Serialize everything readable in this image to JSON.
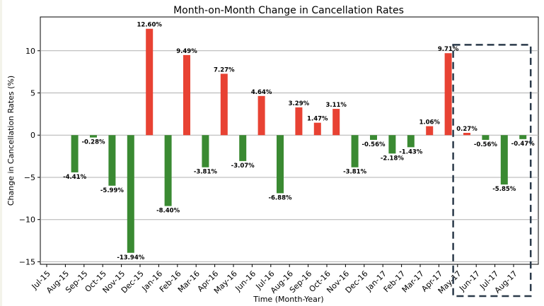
{
  "colors": {
    "increase": "#e84233",
    "decrease": "#3a8a32",
    "highlight_box": "#2b3a4a"
  },
  "chart_data": {
    "type": "bar",
    "title": "Month-on-Month Change in Cancellation Rates",
    "xlabel": "Time (Month-Year)",
    "ylabel": "Change in Cancellation Rates (%)",
    "ylim": [
      -15.3,
      14
    ],
    "yticks": [
      -15,
      -10,
      -5,
      0,
      5,
      10
    ],
    "grid": "horizontal",
    "categories": [
      "Jul-15",
      "Aug-15",
      "Sep-15",
      "Oct-15",
      "Nov-15",
      "Dec-15",
      "Jan-16",
      "Feb-16",
      "Mar-16",
      "Apr-16",
      "May-16",
      "Jun-16",
      "Jul-16",
      "Aug-16",
      "Sep-16",
      "Oct-16",
      "Nov-16",
      "Dec-16",
      "Jan-17",
      "Feb-17",
      "Mar-17",
      "Apr-17",
      "May-17",
      "Jun-17",
      "Jul-17",
      "Aug-17"
    ],
    "values": [
      null,
      -4.41,
      -0.28,
      -5.99,
      -13.94,
      12.6,
      -8.4,
      9.49,
      -3.81,
      7.27,
      -3.07,
      4.64,
      -6.88,
      3.29,
      1.47,
      3.11,
      -3.81,
      -0.56,
      -2.18,
      -1.43,
      1.06,
      9.71,
      0.27,
      -0.56,
      -5.85,
      -0.47
    ],
    "data_labels": [
      "",
      "-4.41%",
      "-0.28%",
      "-5.99%",
      "-13.94%",
      "12.60%",
      "-8.40%",
      "9.49%",
      "-3.81%",
      "7.27%",
      "-3.07%",
      "4.64%",
      "-6.88%",
      "3.29%",
      "1.47%",
      "3.11%",
      "-3.81%",
      "-0.56%",
      "-2.18%",
      "-1.43%",
      "1.06%",
      "9.71%",
      "0.27%",
      "-0.56%",
      "-5.85%",
      "-0.47%"
    ],
    "highlight": {
      "from": "Apr-17",
      "to": "Aug-17",
      "style": "dashed box"
    }
  }
}
